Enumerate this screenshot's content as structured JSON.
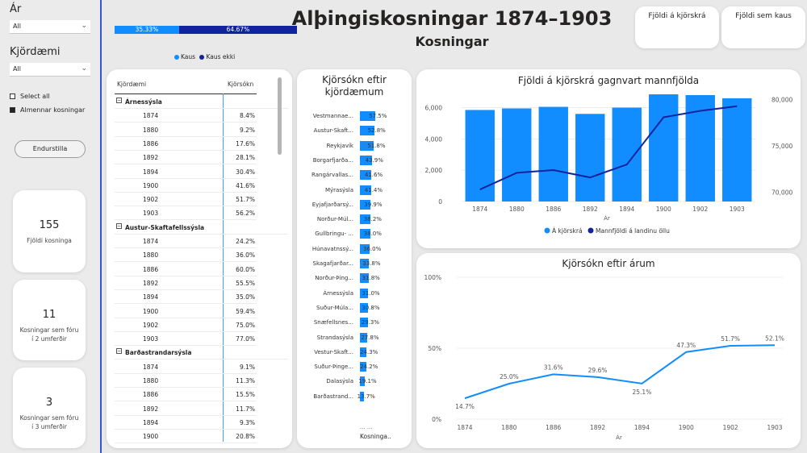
{
  "slicers": {
    "year_title": "Ár",
    "year_value": "All",
    "district_title": "Kjördæmi",
    "district_value": "All",
    "select_all": "Select all",
    "general_elections": "Almennar kosningar",
    "reset_label": "Endurstilla"
  },
  "kpis": [
    {
      "value": "155",
      "label": "Fjöldi kosninga"
    },
    {
      "value": "11",
      "label": "Kosningar sem fóru í 2 umferðir"
    },
    {
      "value": "3",
      "label": "Kosningar sem fóru í 3 umferðir"
    }
  ],
  "header": {
    "title": "Alþingiskosningar 1874–1903",
    "subtitle": "Kosningar",
    "card_registry": "Fjöldi á kjörskrá",
    "card_voters": "Fjöldi sem kaus"
  },
  "turnout_split": {
    "voted_label": "35.33%",
    "voted_fraction": 0.3533,
    "not_voted_label": "64.67%",
    "legend_voted": "Kaus",
    "legend_not_voted": "Kaus ekki",
    "colors": {
      "voted": "#118dff",
      "not_voted": "#12239e"
    }
  },
  "table": {
    "col_district": "Kjördæmi",
    "col_turnout": "Kjörsókn",
    "groups": [
      {
        "name": "Árnessýsla",
        "rows": [
          [
            "1874",
            "8.4%"
          ],
          [
            "1880",
            "9.2%"
          ],
          [
            "1886",
            "17.6%"
          ],
          [
            "1892",
            "28.1%"
          ],
          [
            "1894",
            "30.4%"
          ],
          [
            "1900",
            "41.6%"
          ],
          [
            "1902",
            "51.7%"
          ],
          [
            "1903",
            "56.2%"
          ]
        ]
      },
      {
        "name": "Austur-Skaftafellssýsla",
        "rows": [
          [
            "1874",
            "24.2%"
          ],
          [
            "1880",
            "36.0%"
          ],
          [
            "1886",
            "60.0%"
          ],
          [
            "1892",
            "55.5%"
          ],
          [
            "1894",
            "35.0%"
          ],
          [
            "1900",
            "59.4%"
          ],
          [
            "1902",
            "75.0%"
          ],
          [
            "1903",
            "77.0%"
          ]
        ]
      },
      {
        "name": "Barðastrandarsýsla",
        "rows": [
          [
            "1874",
            "9.1%"
          ],
          [
            "1880",
            "11.3%"
          ],
          [
            "1886",
            "15.5%"
          ],
          [
            "1892",
            "11.7%"
          ],
          [
            "1894",
            "9.3%"
          ],
          [
            "1900",
            "20.8%"
          ]
        ]
      }
    ]
  },
  "district_bars": {
    "title": "Kjörsókn eftir kjördæmum",
    "footer_dots": "... ...",
    "footer_label": "Kosninga..",
    "items": [
      {
        "name": "Vestmannae...",
        "value": 57.5,
        "label": "57.5%"
      },
      {
        "name": "Austur-Skaft...",
        "value": 52.8,
        "label": "52.8%"
      },
      {
        "name": "Reykjavík",
        "value": 51.8,
        "label": "51.8%"
      },
      {
        "name": "Borgarfjarða...",
        "value": 43.9,
        "label": "43.9%"
      },
      {
        "name": "Rangárvallas...",
        "value": 41.6,
        "label": "41.6%"
      },
      {
        "name": "Mýrasýsla",
        "value": 41.4,
        "label": "41.4%"
      },
      {
        "name": "Eyjafjarðarsý...",
        "value": 39.9,
        "label": "39.9%"
      },
      {
        "name": "Norður-Múl...",
        "value": 38.2,
        "label": "38.2%"
      },
      {
        "name": "Gullbringu- ...",
        "value": 38.0,
        "label": "38.0%"
      },
      {
        "name": "Húnavatnssý...",
        "value": 36.0,
        "label": "36.0%"
      },
      {
        "name": "Skagafjarðar...",
        "value": 33.8,
        "label": "33.8%"
      },
      {
        "name": "Norður-Þing...",
        "value": 31.8,
        "label": "31.8%"
      },
      {
        "name": "Árnessýsla",
        "value": 31.0,
        "label": "31.0%"
      },
      {
        "name": "Suður-Múla...",
        "value": 30.8,
        "label": "30.8%"
      },
      {
        "name": "Snæfellsnes...",
        "value": 29.3,
        "label": "29.3%"
      },
      {
        "name": "Strandasýsla",
        "value": 27.8,
        "label": "27.8%"
      },
      {
        "name": "Vestur-Skaft...",
        "value": 24.3,
        "label": "24.3%"
      },
      {
        "name": "Suður-Þinge...",
        "value": 24.2,
        "label": "24.2%"
      },
      {
        "name": "Dalasýsla",
        "value": 19.1,
        "label": "19.1%"
      },
      {
        "name": "Barðastrand...",
        "value": 13.7,
        "label": "13.7%"
      }
    ]
  },
  "chart_data": [
    {
      "type": "bar",
      "title": "Fjöldi á kjörskrá gagnvart mannfjölda",
      "xlabel": "Ár",
      "categories": [
        "1874",
        "1880",
        "1886",
        "1892",
        "1894",
        "1900",
        "1902",
        "1903"
      ],
      "y_ticks": [
        "0",
        "2,000",
        "4,000",
        "6,000"
      ],
      "y2_ticks": [
        "70,000",
        "75,000",
        "80,000"
      ],
      "ylim": [
        0,
        6800
      ],
      "y2lim": [
        69000,
        80500
      ],
      "series": [
        {
          "name": "Á kjörskrá",
          "kind": "bar",
          "color": "#118dff",
          "values": [
            5850,
            5950,
            6050,
            5600,
            6000,
            6850,
            6800,
            6600
          ]
        },
        {
          "name": "Mannfjöldi á landinu öllu",
          "kind": "line",
          "axis": "right",
          "color": "#12239e",
          "values": [
            70300,
            72100,
            72400,
            71600,
            73000,
            78100,
            78800,
            79300
          ]
        }
      ],
      "legend_position": "bottom"
    },
    {
      "type": "line",
      "title": "Kjörsókn eftir árum",
      "xlabel": "Ár",
      "categories": [
        "1874",
        "1880",
        "1886",
        "1892",
        "1894",
        "1900",
        "1902",
        "1903"
      ],
      "y_ticks": [
        "0%",
        "50%",
        "100%"
      ],
      "ylim": [
        0,
        100
      ],
      "series": [
        {
          "color": "#118dff",
          "values": [
            14.7,
            25.0,
            31.6,
            29.6,
            25.1,
            47.3,
            51.7,
            52.1
          ],
          "labels": [
            "14.7%",
            "25.0%",
            "31.6%",
            "29.6%",
            "25.1%",
            "47.3%",
            "51.7%",
            "52.1%"
          ]
        }
      ]
    }
  ]
}
